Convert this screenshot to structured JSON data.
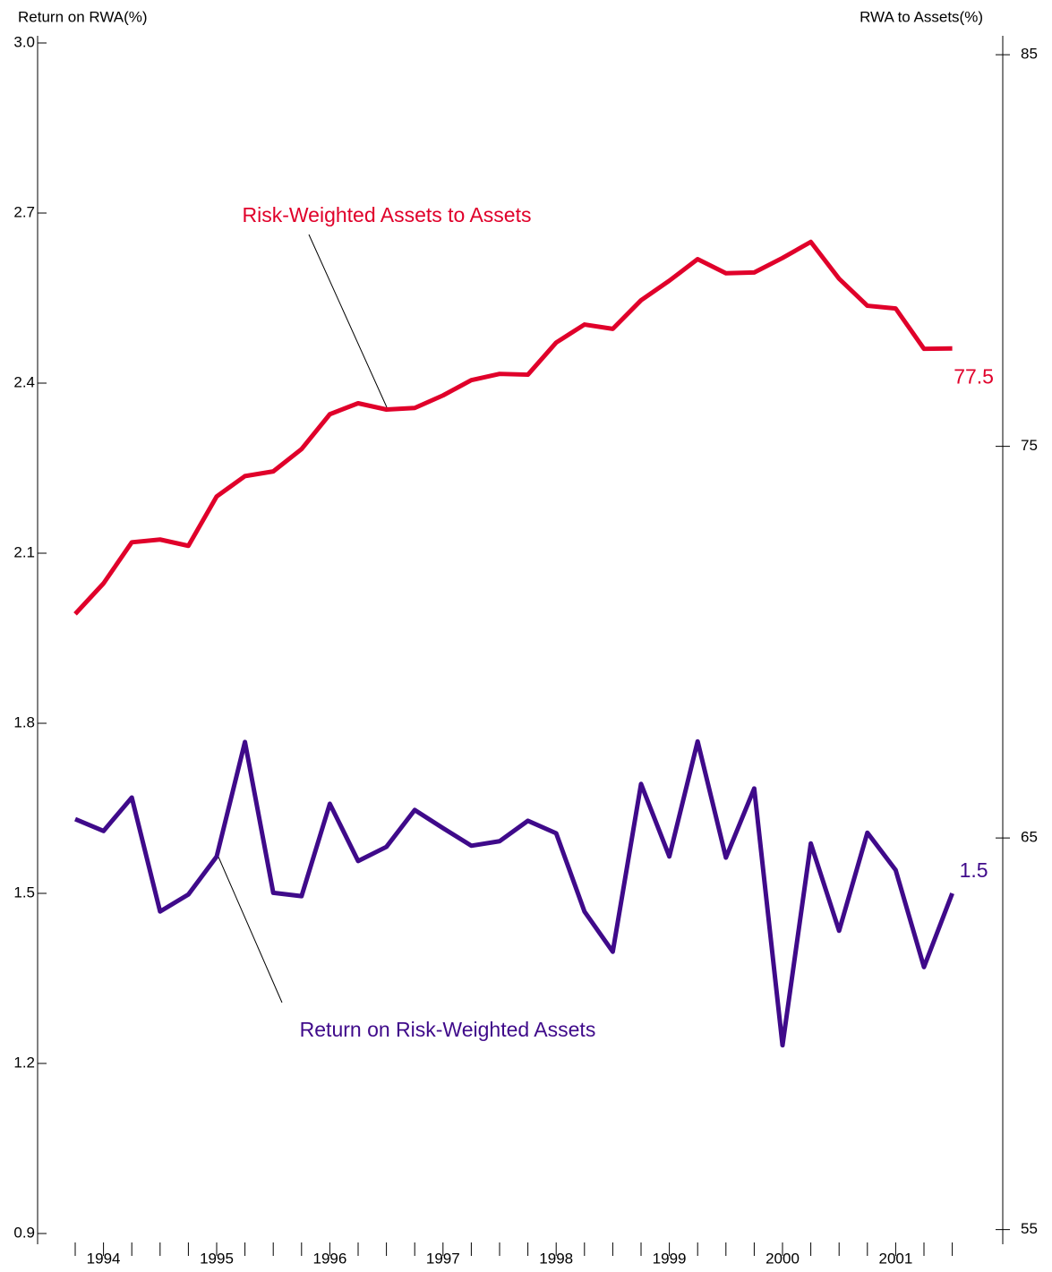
{
  "chart_data": {
    "type": "line",
    "y_label": "Return on RWA(%)",
    "y2_label": "RWA to Assets(%)",
    "categories": [
      null,
      "1994",
      null,
      null,
      null,
      "1995",
      null,
      null,
      null,
      "1996",
      null,
      null,
      null,
      "1997",
      null,
      null,
      null,
      "1998",
      null,
      null,
      null,
      "1999",
      null,
      null,
      null,
      "2000",
      null,
      null,
      null,
      "2001",
      null,
      null
    ],
    "series": [
      {
        "name": "Risk-Weighted Assets to Assets",
        "color": "#e0002a",
        "axis": "y2",
        "values": [
          70.72,
          71.5,
          72.55,
          72.62,
          72.46,
          73.72,
          74.24,
          74.36,
          74.93,
          75.82,
          76.1,
          75.94,
          75.98,
          76.3,
          76.69,
          76.85,
          76.83,
          77.65,
          78.11,
          78.0,
          78.73,
          79.23,
          79.78,
          79.42,
          79.44,
          79.81,
          80.22,
          79.28,
          78.59,
          78.52,
          77.49,
          77.5
        ]
      },
      {
        "name": "Return on Risk-Weighted Assets",
        "color": "#3f0a8a",
        "values": [
          1.631,
          1.61,
          1.669,
          1.468,
          1.498,
          1.565,
          1.767,
          1.501,
          1.495,
          1.658,
          1.557,
          1.582,
          1.647,
          1.615,
          1.584,
          1.592,
          1.628,
          1.606,
          1.468,
          1.397,
          1.693,
          1.565,
          1.768,
          1.563,
          1.685,
          1.232,
          1.588,
          1.434,
          1.607,
          1.541,
          1.37,
          1.5
        ]
      }
    ],
    "ylim": [
      0.9,
      3.0
    ],
    "yticks": [
      {
        "value": 0.9,
        "label": "0.9"
      },
      {
        "value": 1.2,
        "label": "1.2"
      },
      {
        "value": 1.5,
        "label": "1.5"
      },
      {
        "value": 1.8,
        "label": "1.8"
      },
      {
        "value": 2.1,
        "label": "2.1"
      },
      {
        "value": 2.4,
        "label": "2.4"
      },
      {
        "value": 2.7,
        "label": "2.7"
      },
      {
        "value": 3.0,
        "label": "3.0"
      }
    ],
    "y2lim": [
      54.9,
      85.3
    ],
    "y2ticks": [
      55,
      65,
      75,
      85
    ],
    "grid": false
  }
}
